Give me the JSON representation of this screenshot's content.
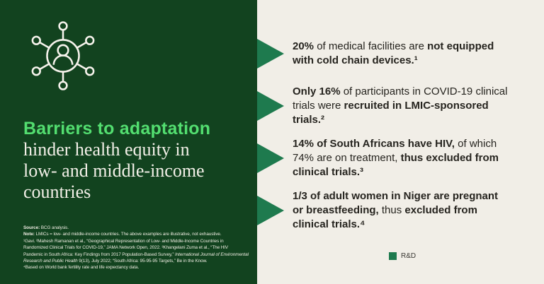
{
  "colors": {
    "panel_dark_green": "#12431f",
    "arrow_green": "#1e7a4e",
    "title_highlight_green": "#53de70",
    "background_cream": "#f1eee7",
    "body_text": "#26241f"
  },
  "left_panel": {
    "icon": "people-network-icon",
    "title_highlight": "Barriers to adaptation",
    "title_rest": [
      "hinder health equity in",
      "low- and middle-income",
      "countries"
    ],
    "footnote": {
      "source": [
        {
          "text": "Source:",
          "bold": true
        },
        {
          "text": " BCG analysis.",
          "bold": false
        }
      ],
      "note": [
        {
          "text": "Note:",
          "bold": true
        },
        {
          "text": " LMICs = low- and middle-income countries. The above examples are illustrative, not exhaustive.",
          "bold": false
        }
      ],
      "references": [
        {
          "text": "¹Gavi. ²Mahesh Ramanan et al., “Geographical Representation of Low- and Middle-Income Countries in Randomized Clinical Trials for COVID-19,” JAMA Network Open, 2022. ³Khangelani Zuma et al., “The HIV Pandemic in South Africa: Key Findings from 2017 Population-Based Survey,” ",
          "bold": false
        },
        {
          "text": "International Journal of Environmental Research and Public Health",
          "bold": false,
          "italic": true
        },
        {
          "text": " 9(13), July 2022; “South Africa: 95-95-95 Targets,” Be in the Know.",
          "bold": false
        }
      ],
      "reference4": [
        {
          "text": "⁴Based on World bank fertility rate and life expectancy data.",
          "bold": false
        }
      ]
    }
  },
  "right_panel": {
    "bullets": [
      {
        "segments": [
          {
            "text": "20%",
            "bold": true
          },
          {
            "text": " of medical facilities are ",
            "bold": false
          },
          {
            "text": "not equipped with cold chain devices.¹",
            "bold": true
          }
        ]
      },
      {
        "segments": [
          {
            "text": "Only 16%",
            "bold": true
          },
          {
            "text": " of participants in COVID-19 clinical trials were ",
            "bold": false
          },
          {
            "text": "recruited in LMIC-sponsored trials.²",
            "bold": true
          }
        ]
      },
      {
        "segments": [
          {
            "text": "14% of South Africans have HIV,",
            "bold": true
          },
          {
            "text": " of which 74% are on treatment, ",
            "bold": false
          },
          {
            "text": "thus excluded from clinical trials.³",
            "bold": true
          }
        ]
      },
      {
        "segments": [
          {
            "text": "1/3 of adult women in Niger are pregnant or breastfeeding,",
            "bold": true
          },
          {
            "text": " thus ",
            "bold": false
          },
          {
            "text": "excluded from clinical trials.⁴",
            "bold": true
          }
        ]
      }
    ],
    "legend": {
      "label": "R&D",
      "color": "#1e7a4e"
    }
  }
}
